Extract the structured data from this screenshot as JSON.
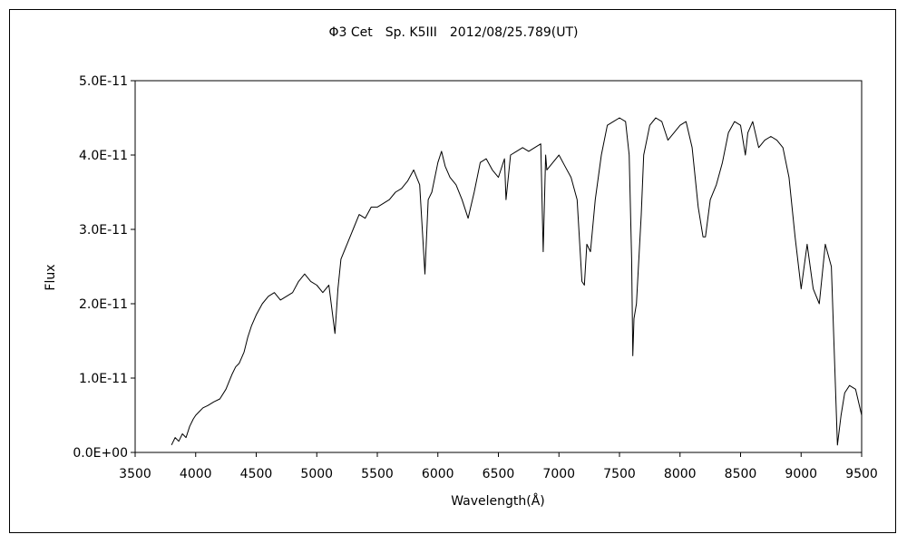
{
  "chart_data": {
    "type": "line",
    "title": "Φ3 Cet　Sp. K5III　2012/08/25.789(UT)",
    "xlabel": "Wavelength(Å)",
    "ylabel": "Flux",
    "xlim": [
      3500,
      9500
    ],
    "ylim": [
      0,
      5e-11
    ],
    "xticks": [
      3500,
      4000,
      4500,
      5000,
      5500,
      6000,
      6500,
      7000,
      7500,
      8000,
      8500,
      9000,
      9500
    ],
    "xtick_labels": [
      "3500",
      "4000",
      "4500",
      "5000",
      "5500",
      "6000",
      "6500",
      "7000",
      "7500",
      "8000",
      "8500",
      "9000",
      "9500"
    ],
    "yticks": [
      0,
      1e-11,
      2e-11,
      3e-11,
      4e-11,
      5e-11
    ],
    "ytick_labels": [
      "0.0E+00",
      "1.0E-11",
      "2.0E-11",
      "3.0E-11",
      "4.0E-11",
      "5.0E-11"
    ],
    "grid": false,
    "legend": "none",
    "series": [
      {
        "color": "#000000",
        "x": [
          3800,
          3830,
          3860,
          3890,
          3920,
          3950,
          3980,
          4000,
          4030,
          4060,
          4100,
          4150,
          4200,
          4250,
          4300,
          4330,
          4360,
          4400,
          4430,
          4460,
          4500,
          4550,
          4600,
          4650,
          4700,
          4750,
          4800,
          4850,
          4900,
          4950,
          5000,
          5050,
          5100,
          5150,
          5175,
          5200,
          5250,
          5300,
          5350,
          5400,
          5450,
          5500,
          5550,
          5600,
          5650,
          5700,
          5750,
          5800,
          5850,
          5893,
          5920,
          5950,
          6000,
          6030,
          6060,
          6100,
          6150,
          6200,
          6250,
          6300,
          6350,
          6400,
          6450,
          6500,
          6550,
          6563,
          6600,
          6650,
          6700,
          6750,
          6800,
          6850,
          6870,
          6890,
          6900,
          6950,
          7000,
          7050,
          7100,
          7150,
          7190,
          7210,
          7230,
          7260,
          7300,
          7350,
          7400,
          7450,
          7500,
          7550,
          7580,
          7600,
          7610,
          7620,
          7640,
          7680,
          7700,
          7750,
          7800,
          7850,
          7900,
          7950,
          8000,
          8050,
          8100,
          8150,
          8190,
          8210,
          8250,
          8300,
          8350,
          8400,
          8450,
          8500,
          8540,
          8560,
          8600,
          8650,
          8700,
          8750,
          8800,
          8850,
          8900,
          8950,
          9000,
          9050,
          9100,
          9150,
          9200,
          9250,
          9300,
          9330,
          9360,
          9400,
          9450,
          9500
        ],
        "y": [
          1e-12,
          2e-12,
          1.5e-12,
          2.5e-12,
          2e-12,
          3.5e-12,
          4.5e-12,
          5e-12,
          5.5e-12,
          6e-12,
          6.3e-12,
          6.8e-12,
          7.2e-12,
          8.5e-12,
          1.05e-11,
          1.15e-11,
          1.2e-11,
          1.35e-11,
          1.55e-11,
          1.7e-11,
          1.85e-11,
          2e-11,
          2.1e-11,
          2.15e-11,
          2.05e-11,
          2.1e-11,
          2.15e-11,
          2.3e-11,
          2.4e-11,
          2.3e-11,
          2.25e-11,
          2.15e-11,
          2.25e-11,
          1.6e-11,
          2.2e-11,
          2.6e-11,
          2.8e-11,
          3e-11,
          3.2e-11,
          3.15e-11,
          3.3e-11,
          3.3e-11,
          3.35e-11,
          3.4e-11,
          3.5e-11,
          3.55e-11,
          3.65e-11,
          3.8e-11,
          3.6e-11,
          2.4e-11,
          3.4e-11,
          3.5e-11,
          3.9e-11,
          4.05e-11,
          3.85e-11,
          3.7e-11,
          3.6e-11,
          3.4e-11,
          3.15e-11,
          3.5e-11,
          3.9e-11,
          3.95e-11,
          3.8e-11,
          3.7e-11,
          3.95e-11,
          3.4e-11,
          4e-11,
          4.05e-11,
          4.1e-11,
          4.05e-11,
          4.1e-11,
          4.15e-11,
          2.7e-11,
          4e-11,
          3.8e-11,
          3.9e-11,
          4e-11,
          3.85e-11,
          3.7e-11,
          3.4e-11,
          2.3e-11,
          2.25e-11,
          2.8e-11,
          2.7e-11,
          3.4e-11,
          4e-11,
          4.4e-11,
          4.45e-11,
          4.5e-11,
          4.45e-11,
          4e-11,
          2.6e-11,
          1.3e-11,
          1.8e-11,
          2e-11,
          3.2e-11,
          4e-11,
          4.4e-11,
          4.5e-11,
          4.45e-11,
          4.2e-11,
          4.3e-11,
          4.4e-11,
          4.45e-11,
          4.1e-11,
          3.3e-11,
          2.9e-11,
          2.9e-11,
          3.4e-11,
          3.6e-11,
          3.9e-11,
          4.3e-11,
          4.45e-11,
          4.4e-11,
          4e-11,
          4.3e-11,
          4.45e-11,
          4.1e-11,
          4.2e-11,
          4.25e-11,
          4.2e-11,
          4.1e-11,
          3.7e-11,
          2.9e-11,
          2.2e-11,
          2.8e-11,
          2.2e-11,
          2e-11,
          2.8e-11,
          2.5e-11,
          1e-12,
          5e-12,
          8e-12,
          9e-12,
          8.5e-12,
          5e-12
        ]
      }
    ]
  }
}
